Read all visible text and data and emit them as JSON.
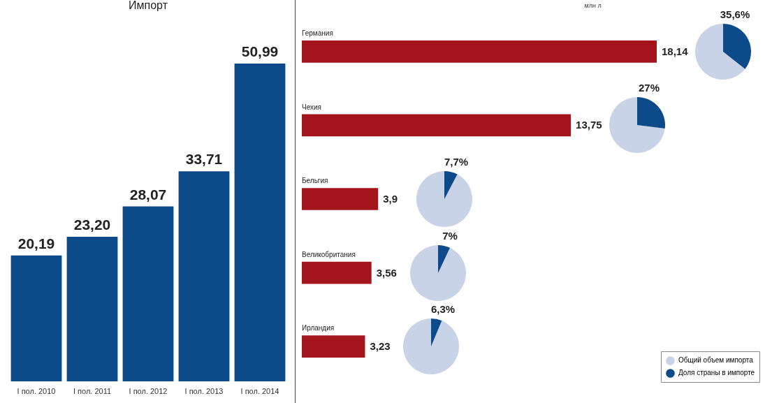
{
  "chart_data": [
    {
      "type": "bar",
      "title": "Импорт",
      "categories": [
        "I пол. 2010",
        "I пол. 2011",
        "I пол. 2012",
        "I пол. 2013",
        "I пол. 2014"
      ],
      "values": [
        20.19,
        23.2,
        28.07,
        33.71,
        50.99
      ],
      "color": "#0d4a8a",
      "value_labels": [
        "20,19",
        "23,20",
        "28,07",
        "33,71",
        "50,99"
      ]
    },
    {
      "type": "bar",
      "orientation": "horizontal",
      "categories": [
        "Германия",
        "Чехия",
        "Бельгия",
        "Великобритания",
        "Ирландия"
      ],
      "values": [
        18.14,
        13.75,
        3.9,
        3.56,
        3.23
      ],
      "color": "#a3141c",
      "value_labels": [
        "18,14",
        "13,75",
        "3,9",
        "3,56",
        "3,23"
      ],
      "annotations": [
        "млн л"
      ]
    },
    {
      "type": "pie",
      "categories": [
        null,
        null
      ],
      "values": [
        64.4,
        35.6
      ],
      "colors": [
        "#c8d3e8",
        "#0d4a8a"
      ],
      "value_labels": [
        null,
        "35,6%"
      ]
    },
    {
      "type": "pie",
      "categories": [
        null,
        null
      ],
      "values": [
        73,
        27
      ],
      "colors": [
        "#c8d3e8",
        "#0d4a8a"
      ],
      "value_labels": [
        null,
        "27%"
      ]
    },
    {
      "type": "pie",
      "categories": [
        null,
        null
      ],
      "values": [
        92.3,
        7.7
      ],
      "colors": [
        "#c8d3e8",
        "#0d4a8a"
      ],
      "value_labels": [
        null,
        "7,7%"
      ]
    },
    {
      "type": "pie",
      "categories": [
        null,
        null
      ],
      "values": [
        93,
        7
      ],
      "colors": [
        "#c8d3e8",
        "#0d4a8a"
      ],
      "value_labels": [
        null,
        "7%"
      ]
    },
    {
      "type": "pie",
      "categories": [
        "Общий объем импорта",
        "Доля страны в импорте"
      ],
      "values": [
        93.7,
        6.3
      ],
      "colors": [
        "#c8d3e8",
        "#0d4a8a"
      ],
      "value_labels": [
        null,
        "6,3%"
      ],
      "legend": "bottom right"
    }
  ]
}
